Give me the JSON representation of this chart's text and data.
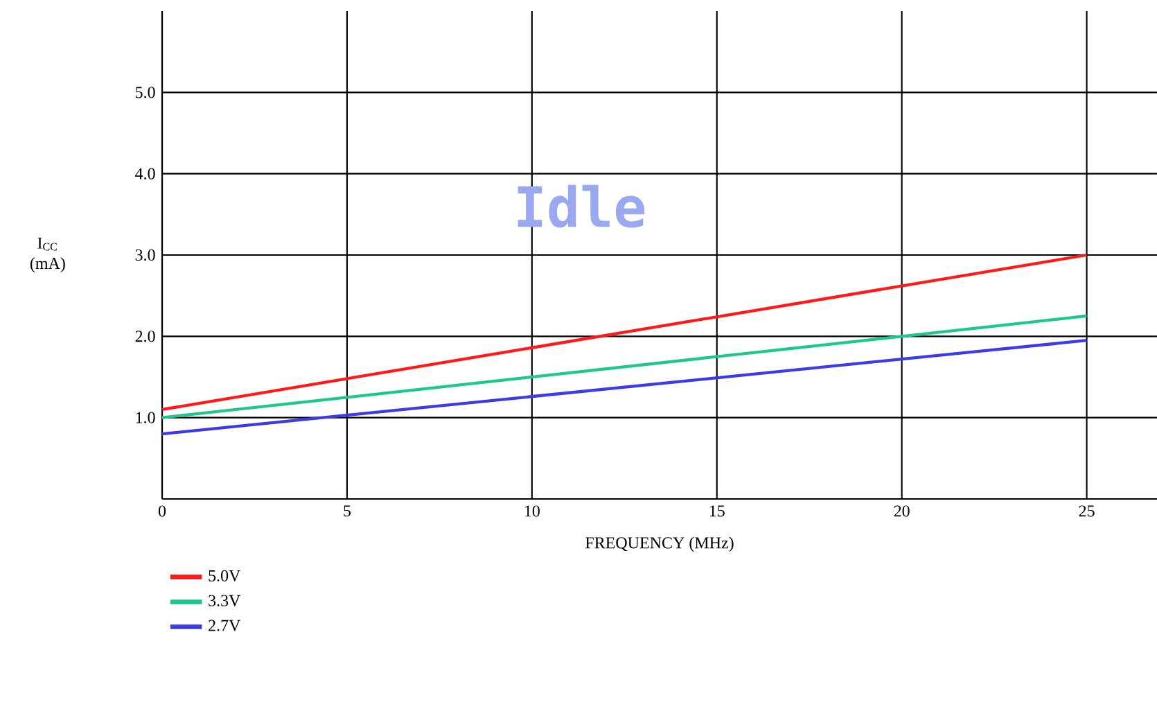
{
  "chart_data": {
    "type": "line",
    "xlabel": "FREQUENCY (MHz)",
    "ylabel": "I$_{CC}$ (mA)",
    "annotations": [
      "Idle"
    ],
    "x": [
      0,
      25
    ],
    "series": [
      {
        "name": "5.0V",
        "color": "#ff1a1a",
        "values": [
          1.1,
          3.0
        ]
      },
      {
        "name": "3.3V",
        "color": "#1ec88c",
        "values": [
          1.0,
          2.25
        ]
      },
      {
        "name": "2.7V",
        "color": "#3c3ce6",
        "values": [
          0.8,
          1.95
        ]
      }
    ],
    "xlim": [
      0,
      26.9
    ],
    "ylim": [
      0,
      6
    ],
    "xticks": [
      0,
      5,
      10,
      15,
      20,
      25
    ],
    "yticks": [
      {
        "value": 1,
        "label": "1.0"
      },
      {
        "value": 2,
        "label": "2.0"
      },
      {
        "value": 3,
        "label": "3.0"
      },
      {
        "value": 4,
        "label": "4.0"
      },
      {
        "value": 5,
        "label": "5.0"
      }
    ],
    "grid": true,
    "legend": "bottom left",
    "marker": "none",
    "line_style": "solid"
  }
}
